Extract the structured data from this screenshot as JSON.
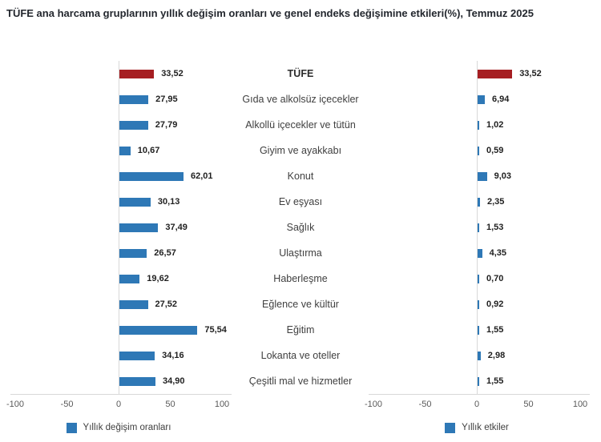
{
  "title": "TÜFE ana harcama gruplarının yıllık değişim oranları ve genel endeks değişimine etkileri(%), Temmuz 2025",
  "colors": {
    "bar_blue": "#2E78B6",
    "bar_red": "#A61E22",
    "axis_line": "#D8D8D8",
    "tick_text": "#595959",
    "category_text": "#404040",
    "value_text": "#1F1F1F",
    "title_text": "#23272E",
    "legend_text": "#404040"
  },
  "chart_data": {
    "type": "bar",
    "orientation": "horizontal",
    "layout": "tornado-two-panels-shared-center-labels",
    "title": "TÜFE ana harcama gruplarının yıllık değişim oranları ve genel endeks değişimine etkileri(%), Temmuz 2025",
    "categories": [
      "TÜFE",
      "Gıda ve alkolsüz içecekler",
      "Alkollü içecekler ve tütün",
      "Giyim ve ayakkabı",
      "Konut",
      "Ev eşyası",
      "Sağlık",
      "Ulaştırma",
      "Haberleşme",
      "Eğlence ve kültür",
      "Eğitim",
      "Lokanta ve oteller",
      "Çeşitli mal ve hizmetler"
    ],
    "series": [
      {
        "name": "Yıllık değişim oranları",
        "panel": "left",
        "values": [
          33.52,
          27.95,
          27.79,
          10.67,
          62.01,
          30.13,
          37.49,
          26.57,
          19.62,
          27.52,
          75.54,
          34.16,
          34.9
        ],
        "labels": [
          "33,52",
          "27,95",
          "27,79",
          "10,67",
          "62,01",
          "30,13",
          "37,49",
          "26,57",
          "19,62",
          "27,52",
          "75,54",
          "34,16",
          "34,90"
        ]
      },
      {
        "name": "Yıllık etkiler",
        "panel": "right",
        "values": [
          33.52,
          6.94,
          1.02,
          0.59,
          9.03,
          2.35,
          1.53,
          4.35,
          0.7,
          0.92,
          1.55,
          2.98,
          1.55
        ],
        "labels": [
          "33,52",
          "6,94",
          "1,02",
          "0,59",
          "9,03",
          "2,35",
          "1,53",
          "4,35",
          "0,70",
          "0,92",
          "1,55",
          "2,98",
          "1,55"
        ]
      }
    ],
    "highlight_category": "TÜFE",
    "highlight_row_index": 0,
    "xlim": [
      -100,
      100
    ],
    "x_ticks": [
      "-100",
      "-50",
      "0",
      "50",
      "100"
    ],
    "grid": false,
    "legend_position": "bottom-center-per-panel"
  }
}
